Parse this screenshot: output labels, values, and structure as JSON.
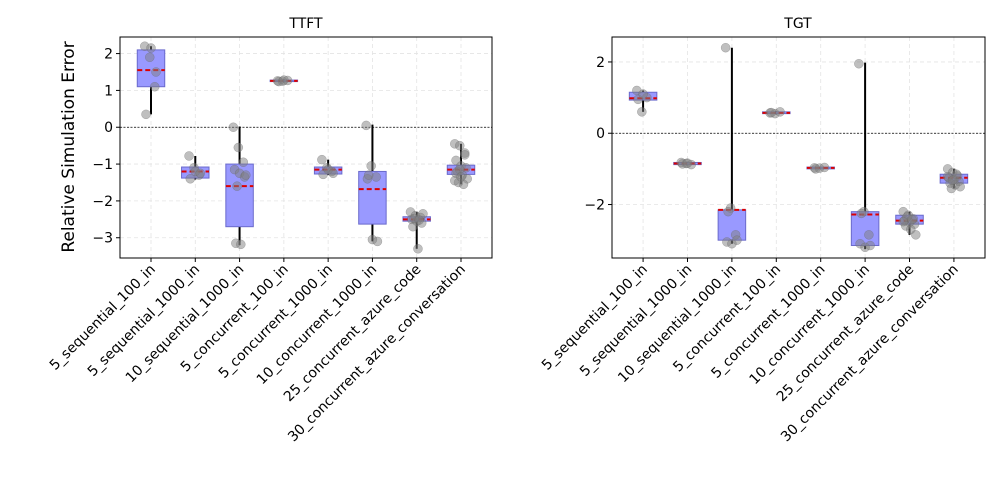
{
  "chart_data": [
    {
      "type": "box",
      "title": "TTFT",
      "ylabel": "Relative Simulation Error",
      "xlabel": "",
      "ylim": [
        -3.55,
        2.45
      ],
      "yticks": [
        2,
        1,
        0,
        -1,
        -2,
        -3
      ],
      "grid": true,
      "reference_line": 0,
      "categories": [
        "5_sequential_100_in",
        "5_sequential_1000_in",
        "10_sequential_1000_in",
        "5_concurrent_100_in",
        "5_concurrent_1000_in",
        "10_concurrent_1000_in",
        "25_concurrent_azure_code",
        "30_concurrent_azure_conversation"
      ],
      "boxes": [
        {
          "q1": 1.1,
          "median": 1.55,
          "q3": 2.1,
          "min": 0.35,
          "max": 2.2
        },
        {
          "q1": -1.38,
          "median": -1.2,
          "q3": -1.08,
          "min": -1.42,
          "max": -0.78
        },
        {
          "q1": -2.7,
          "median": -1.6,
          "q3": -1.0,
          "min": -3.2,
          "max": 0.02
        },
        {
          "q1": 1.24,
          "median": 1.26,
          "q3": 1.28,
          "min": 1.22,
          "max": 1.3
        },
        {
          "q1": -1.27,
          "median": -1.15,
          "q3": -1.08,
          "min": -1.3,
          "max": -0.88
        },
        {
          "q1": -2.63,
          "median": -1.68,
          "q3": -1.2,
          "min": -3.1,
          "max": 0.07
        },
        {
          "q1": -2.55,
          "median": -2.5,
          "q3": -2.43,
          "min": -3.3,
          "max": -2.3
        },
        {
          "q1": -1.28,
          "median": -1.15,
          "q3": -1.03,
          "min": -1.55,
          "max": -0.45
        }
      ],
      "points": [
        [
          2.2,
          1.9,
          1.1,
          0.35,
          2.15,
          1.5
        ],
        [
          -0.78,
          -1.1,
          -1.3,
          -1.4,
          -1.2,
          -1.25
        ],
        [
          0.0,
          -0.55,
          -0.95,
          -1.15,
          -1.25,
          -1.35,
          -3.15,
          -3.18,
          -1.3,
          -1.6
        ],
        [
          1.26,
          1.25,
          1.27,
          1.24,
          1.28
        ],
        [
          -0.88,
          -1.1,
          -1.2,
          -1.28,
          -1.15,
          -1.25
        ],
        [
          0.05,
          -1.05,
          -1.35,
          -1.4,
          -3.05,
          -3.1,
          -1.3
        ],
        [
          -2.3,
          -2.4,
          -2.45,
          -2.5,
          -2.55,
          -2.6,
          -2.7,
          -3.3,
          -2.35,
          -2.48,
          -2.52
        ],
        [
          -0.45,
          -0.5,
          -0.7,
          -0.9,
          -1.05,
          -1.1,
          -1.2,
          -1.3,
          -1.4,
          -1.5,
          -1.55,
          -1.45,
          -1.15,
          -0.75,
          -1.25,
          -1.35
        ]
      ]
    },
    {
      "type": "box",
      "title": "TGT",
      "ylabel": "",
      "xlabel": "",
      "ylim": [
        -3.5,
        2.7
      ],
      "yticks": [
        2,
        0,
        -2
      ],
      "grid": true,
      "reference_line": 0,
      "categories": [
        "5_sequential_100_in",
        "5_sequential_1000_in",
        "10_sequential_1000_in",
        "5_concurrent_100_in",
        "5_concurrent_1000_in",
        "10_concurrent_1000_in",
        "25_concurrent_azure_code",
        "30_concurrent_azure_conversation"
      ],
      "boxes": [
        {
          "q1": 0.93,
          "median": 0.98,
          "q3": 1.15,
          "min": 0.6,
          "max": 1.2
        },
        {
          "q1": -0.88,
          "median": -0.85,
          "q3": -0.82,
          "min": -0.9,
          "max": -0.8
        },
        {
          "q1": -3.0,
          "median": -2.15,
          "q3": -2.15,
          "min": -3.1,
          "max": 2.4
        },
        {
          "q1": 0.55,
          "median": 0.57,
          "q3": 0.6,
          "min": 0.53,
          "max": 0.62
        },
        {
          "q1": -1.0,
          "median": -0.97,
          "q3": -0.95,
          "min": -1.0,
          "max": -0.95
        },
        {
          "q1": -3.15,
          "median": -2.28,
          "q3": -2.2,
          "min": -3.25,
          "max": 1.98
        },
        {
          "q1": -2.55,
          "median": -2.45,
          "q3": -2.3,
          "min": -2.85,
          "max": -2.2
        },
        {
          "q1": -1.4,
          "median": -1.25,
          "q3": -1.15,
          "min": -1.55,
          "max": -1.0
        }
      ],
      "points": [
        [
          1.2,
          0.6,
          1.0,
          0.95,
          1.1
        ],
        [
          -0.82,
          -0.85,
          -0.88,
          -0.86,
          -0.84
        ],
        [
          2.4,
          -2.1,
          -2.85,
          -3.05,
          -3.1,
          -3.0,
          -2.2
        ],
        [
          0.57,
          0.55,
          0.6,
          0.58
        ],
        [
          -0.97,
          -0.98,
          -0.96,
          -1.0
        ],
        [
          1.95,
          -2.2,
          -2.85,
          -3.1,
          -3.2,
          -3.15,
          -2.25
        ],
        [
          -2.2,
          -2.3,
          -2.4,
          -2.45,
          -2.5,
          -2.55,
          -2.6,
          -2.7,
          -2.85,
          -2.35,
          -2.42,
          -2.48
        ],
        [
          -1.0,
          -1.1,
          -1.2,
          -1.25,
          -1.3,
          -1.35,
          -1.4,
          -1.45,
          -1.5,
          -1.55,
          -1.15,
          -1.22,
          -1.32
        ]
      ]
    }
  ]
}
